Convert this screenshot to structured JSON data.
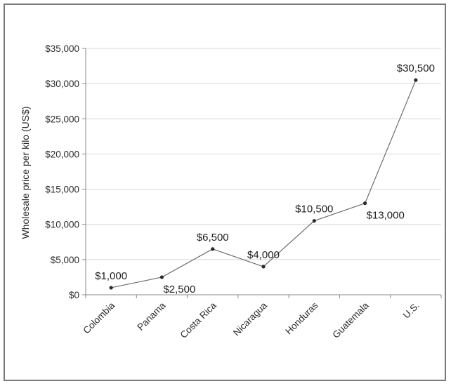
{
  "chart_data": {
    "type": "line",
    "title": "",
    "xlabel": "",
    "ylabel": "Wholesale price per kilo (US$)",
    "categories": [
      "Colombia",
      "Panama",
      "Costa Rica",
      "Nicaragua",
      "Honduras",
      "Guatemala",
      "U.S."
    ],
    "series": [
      {
        "values": [
          1000,
          2500,
          6500,
          4000,
          10500,
          13000,
          30500
        ],
        "data_labels": [
          "$1,000",
          "$2,500",
          "$6,500",
          "$4,000",
          "$10,500",
          "$13,000",
          "$30,500"
        ]
      }
    ],
    "ylim": [
      0,
      35000
    ],
    "y_ticks": [
      0,
      5000,
      10000,
      15000,
      20000,
      25000,
      30000,
      35000
    ],
    "y_tick_labels": [
      "$0",
      "$5,000",
      "$10,000",
      "$15,000",
      "$20,000",
      "$25,000",
      "$30,000",
      "$35,000"
    ],
    "grid": true,
    "legend": "none",
    "colors": {
      "line": "#6e6e6e",
      "marker": "#2a2a2a",
      "grid": "#d8d8d8",
      "axis": "#8a8a8a",
      "border": "#7a7a7a"
    }
  }
}
